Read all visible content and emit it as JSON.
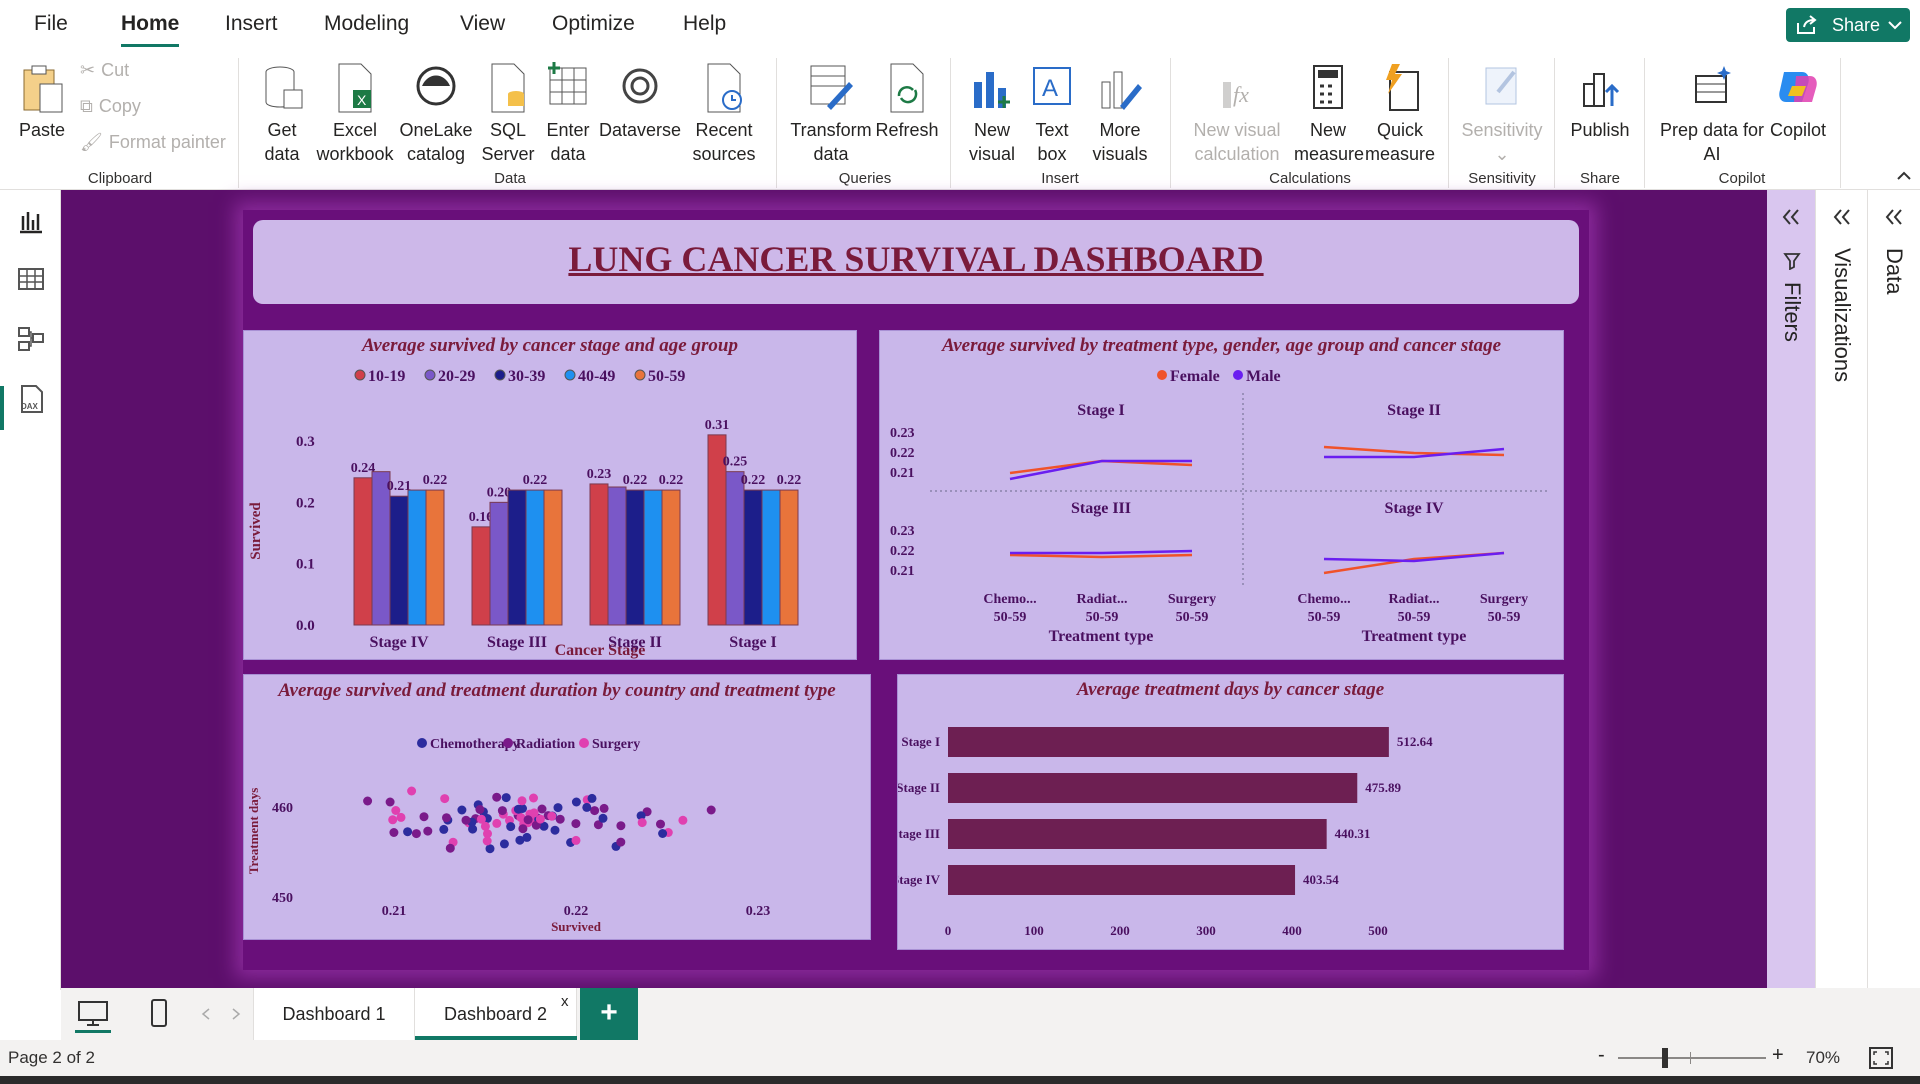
{
  "menu": {
    "file": "File",
    "home": "Home",
    "insert": "Insert",
    "modeling": "Modeling",
    "view": "View",
    "optimize": "Optimize",
    "help": "Help",
    "share": "Share"
  },
  "ribbon": {
    "paste": "Paste",
    "cut": "Cut",
    "copy": "Copy",
    "format_painter": "Format painter",
    "clipboard": "Clipboard",
    "get_data": [
      "Get",
      "data"
    ],
    "excel": [
      "Excel",
      "workbook"
    ],
    "onelake": [
      "OneLake",
      "catalog"
    ],
    "sql": [
      "SQL",
      "Server"
    ],
    "enter": [
      "Enter",
      "data"
    ],
    "dataverse": "Dataverse",
    "recent": [
      "Recent",
      "sources"
    ],
    "data_group": "Data",
    "transform": [
      "Transform",
      "data"
    ],
    "refresh": "Refresh",
    "queries": "Queries",
    "new_visual": [
      "New",
      "visual"
    ],
    "text_box": [
      "Text",
      "box"
    ],
    "more_visuals": [
      "More",
      "visuals"
    ],
    "insert_group": "Insert",
    "new_visual_calc": [
      "New visual",
      "calculation"
    ],
    "new_measure": [
      "New",
      "measure"
    ],
    "quick_measure": [
      "Quick",
      "measure"
    ],
    "calculations": "Calculations",
    "sensitivity": "Sensitivity",
    "sensitivity_group": "Sensitivity",
    "publish": "Publish",
    "share_group": "Share",
    "prep": [
      "Prep data for",
      "AI"
    ],
    "copilot": "Copilot",
    "copilot_group": "Copilot"
  },
  "dashboard": {
    "title": "LUNG CANCER SURVIVAL DASHBOARD",
    "p1_title": "Average survived by cancer stage and age group",
    "p2_title": "Average survived by treatment type, gender, age group and cancer stage",
    "p3_title": "Average survived and treatment duration by country and treatment type",
    "p4_title": "Average treatment days by cancer stage"
  },
  "colors": {
    "age": [
      "#d0404a",
      "#7a58c8",
      "#1c1e8a",
      "#1e90f0",
      "#e8743b"
    ],
    "female": "#f0522a",
    "male": "#6a1ef0",
    "chemo": "#2c2c9e",
    "radiation": "#7a1a8a",
    "surgery": "#e040b0",
    "bar": "#6d1f52"
  },
  "chart_data": [
    {
      "type": "bar",
      "title": "Average survived by cancer stage and age group",
      "categories": [
        "Stage IV",
        "Stage III",
        "Stage II",
        "Stage I"
      ],
      "series": [
        {
          "name": "10-19",
          "values": [
            0.24,
            0.16,
            0.23,
            0.31
          ]
        },
        {
          "name": "20-29",
          "values": [
            0.25,
            0.2,
            0.225,
            0.25
          ]
        },
        {
          "name": "30-39",
          "values": [
            0.21,
            0.22,
            0.22,
            0.22
          ]
        },
        {
          "name": "40-49",
          "values": [
            0.22,
            0.22,
            0.22,
            0.22
          ]
        },
        {
          "name": "50-59",
          "values": [
            0.22,
            0.22,
            0.22,
            0.22
          ]
        }
      ],
      "labels": [
        [
          "0.24",
          "",
          "0.21",
          "",
          "0.22"
        ],
        [
          "0.16",
          "0.20",
          "",
          "0.22",
          ""
        ],
        [
          "0.23",
          "",
          "0.22",
          "",
          "0.22"
        ],
        [
          "0.31",
          "0.25",
          "0.22",
          "",
          "0.22"
        ]
      ],
      "xlabel": "Cancer Stage",
      "ylabel": "Survived",
      "yticks": [
        "0.0",
        "0.1",
        "0.2",
        "0.3"
      ],
      "ylim": [
        0,
        0.3
      ]
    },
    {
      "type": "line",
      "title": "Average survived by treatment type, gender, age group and cancer stage",
      "legend": [
        "Female",
        "Male"
      ],
      "panels": [
        {
          "name": "Stage I",
          "female": [
            0.212,
            0.218,
            0.216
          ],
          "male": [
            0.209,
            0.218,
            0.218
          ]
        },
        {
          "name": "Stage II",
          "female": [
            0.225,
            0.222,
            0.221
          ],
          "male": [
            0.22,
            0.22,
            0.224
          ]
        },
        {
          "name": "Stage III",
          "female": [
            0.22,
            0.219,
            0.22
          ],
          "male": [
            0.221,
            0.221,
            0.222
          ]
        },
        {
          "name": "Stage IV",
          "female": [
            0.211,
            0.218,
            0.221
          ],
          "male": [
            0.218,
            0.217,
            0.221
          ]
        }
      ],
      "x": [
        [
          "Chemo...",
          "50-59"
        ],
        [
          "Radiat...",
          "50-59"
        ],
        [
          "Surgery",
          "50-59"
        ]
      ],
      "yticks": [
        "0.23",
        "0.22",
        "0.21"
      ],
      "xlabel": "Treatment type"
    },
    {
      "type": "scatter",
      "title": "Average survived and treatment duration by country and treatment type",
      "legend": [
        "Chemotherapy",
        "Radiation",
        "Surgery"
      ],
      "xticks": [
        "0.21",
        "0.22",
        "0.23"
      ],
      "yticks": [
        "460",
        "450"
      ],
      "xlabel": "Survived",
      "ylabel": "Treatment days",
      "xlim": [
        0.205,
        0.235
      ],
      "ylim": [
        448,
        463
      ]
    },
    {
      "type": "bar",
      "orientation": "horizontal",
      "title": "Average treatment days by cancer stage",
      "categories": [
        "Stage I",
        "Stage II",
        "Stage III",
        "Stage IV"
      ],
      "values": [
        512.64,
        475.89,
        440.31,
        403.54
      ],
      "labels": [
        "512.64",
        "475.89",
        "440.31",
        "403.54"
      ],
      "xticks": [
        "0",
        "100",
        "200",
        "300",
        "400",
        "500"
      ],
      "xlim": [
        0,
        500
      ]
    }
  ],
  "panes": {
    "filters": "Filters",
    "visualizations": "Visualizations",
    "data": "Data"
  },
  "tabs": {
    "t1": "Dashboard 1",
    "t2": "Dashboard 2",
    "close": "x"
  },
  "status": {
    "page": "Page 2 of 2",
    "zoom": "70%"
  }
}
